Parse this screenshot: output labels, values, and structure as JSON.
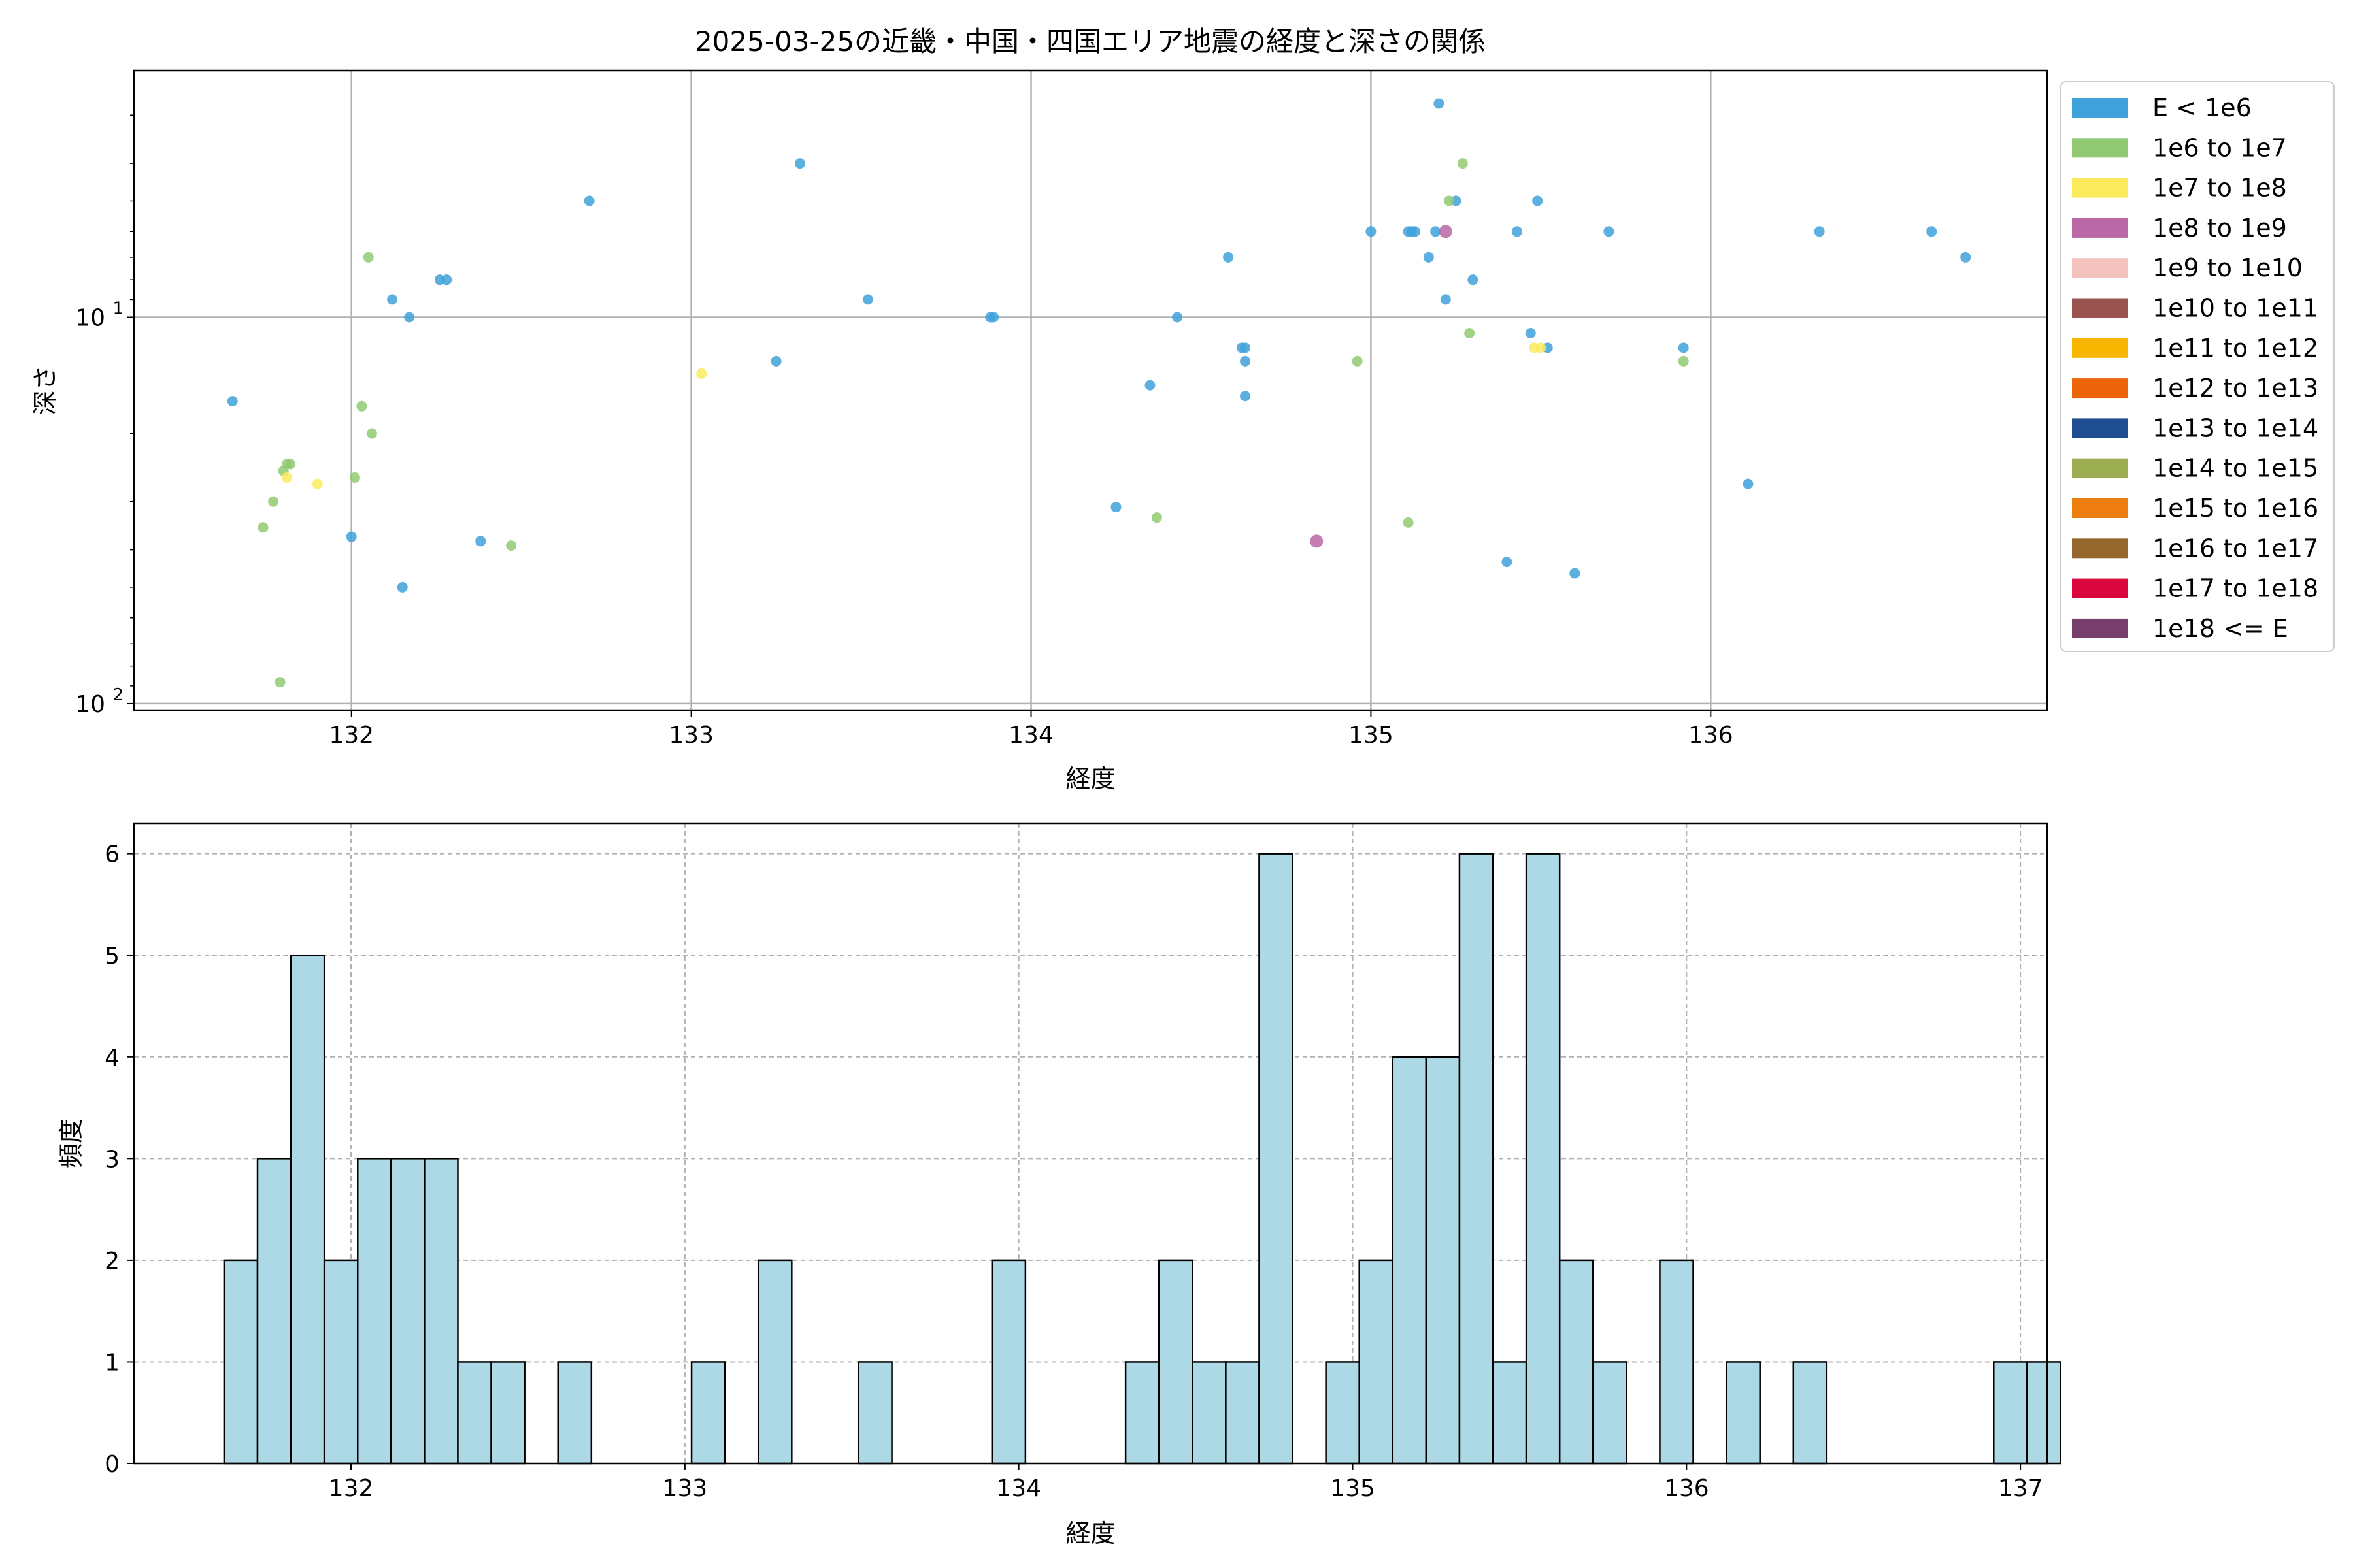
{
  "chart_data": [
    {
      "type": "scatter",
      "title": "2025-03-25の近畿・中国・四国エリア地震の経度と深さの関係",
      "xlabel": "経度",
      "ylabel": "深さ",
      "xlim": [
        131.36,
        136.99
      ],
      "xticks": [
        132,
        133,
        134,
        135,
        136
      ],
      "y_scale": "log",
      "y_inverted": true,
      "ylim": [
        104,
        2.3
      ],
      "yticks": [
        {
          "value": 10,
          "label": "10^1"
        },
        {
          "value": 100,
          "label": "10^2"
        }
      ],
      "grid": true,
      "legend": {
        "placement": "outside-right",
        "entries": [
          {
            "label": "E < 1e6",
            "color": "#3fa2db"
          },
          {
            "label": "1e6 to 1e7",
            "color": "#92c973"
          },
          {
            "label": "1e7 to 1e8",
            "color": "#fbeb5c"
          },
          {
            "label": "1e8 to 1e9",
            "color": "#b967a5"
          },
          {
            "label": "1e9 to 1e10",
            "color": "#f4c3bf"
          },
          {
            "label": "1e10 to 1e11",
            "color": "#9a534f"
          },
          {
            "label": "1e11 to 1e12",
            "color": "#f7b600"
          },
          {
            "label": "1e12 to 1e13",
            "color": "#ec6409"
          },
          {
            "label": "1e13 to 1e14",
            "color": "#1e4d91"
          },
          {
            "label": "1e14 to 1e15",
            "color": "#9cad52"
          },
          {
            "label": "1e15 to 1e16",
            "color": "#ee7d10"
          },
          {
            "label": "1e16 to 1e17",
            "color": "#95692e"
          },
          {
            "label": "1e17 to 1e18",
            "color": "#d8063c"
          },
          {
            "label": "1e18 <= E",
            "color": "#773e6b"
          }
        ]
      },
      "series": [
        {
          "class": 0,
          "points": [
            [
              131.65,
              16.5
            ],
            [
              132.0,
              37
            ],
            [
              132.12,
              9
            ],
            [
              132.15,
              50
            ],
            [
              132.17,
              10
            ],
            [
              132.26,
              8
            ],
            [
              132.28,
              8
            ],
            [
              132.38,
              38
            ],
            [
              132.7,
              5
            ],
            [
              133.25,
              13
            ],
            [
              133.32,
              4
            ],
            [
              133.52,
              9
            ],
            [
              133.88,
              10
            ],
            [
              133.89,
              10
            ],
            [
              134.25,
              31
            ],
            [
              134.35,
              15
            ],
            [
              134.43,
              10
            ],
            [
              134.58,
              7
            ],
            [
              134.62,
              12
            ],
            [
              134.63,
              12
            ],
            [
              134.63,
              13
            ],
            [
              134.63,
              16
            ],
            [
              135.0,
              6
            ],
            [
              135.11,
              6
            ],
            [
              135.12,
              6
            ],
            [
              135.13,
              6
            ],
            [
              135.17,
              7
            ],
            [
              135.19,
              6
            ],
            [
              135.2,
              2.8
            ],
            [
              135.22,
              9
            ],
            [
              135.25,
              5
            ],
            [
              135.3,
              8
            ],
            [
              135.4,
              43
            ],
            [
              135.43,
              6
            ],
            [
              135.47,
              11
            ],
            [
              135.49,
              5
            ],
            [
              135.52,
              12
            ],
            [
              135.6,
              46
            ],
            [
              135.7,
              6
            ],
            [
              135.92,
              12
            ],
            [
              136.11,
              27
            ],
            [
              136.32,
              6
            ],
            [
              136.65,
              6
            ],
            [
              136.75,
              7
            ]
          ]
        },
        {
          "class": 1,
          "points": [
            [
              131.74,
              35
            ],
            [
              131.77,
              30
            ],
            [
              131.79,
              88
            ],
            [
              131.8,
              25
            ],
            [
              131.81,
              24
            ],
            [
              131.82,
              24
            ],
            [
              132.01,
              26
            ],
            [
              132.03,
              17
            ],
            [
              132.05,
              7
            ],
            [
              132.06,
              20
            ],
            [
              132.47,
              39
            ],
            [
              134.37,
              33
            ],
            [
              134.96,
              13
            ],
            [
              135.11,
              34
            ],
            [
              135.23,
              5
            ],
            [
              135.27,
              4
            ],
            [
              135.29,
              11
            ],
            [
              135.92,
              13
            ]
          ]
        },
        {
          "class": 2,
          "points": [
            [
              131.81,
              26
            ],
            [
              131.9,
              27
            ],
            [
              133.03,
              14
            ],
            [
              135.48,
              12
            ],
            [
              135.5,
              12
            ]
          ]
        },
        {
          "class": 3,
          "points": [
            [
              134.84,
              38
            ],
            [
              135.22,
              6
            ]
          ]
        }
      ]
    },
    {
      "type": "bar",
      "subtype": "histogram",
      "xlabel": "経度",
      "ylabel": "頻度",
      "xlim": [
        131.35,
        137.08
      ],
      "ylim": [
        0,
        6.3
      ],
      "xticks": [
        132,
        133,
        134,
        135,
        136,
        137
      ],
      "yticks": [
        0,
        1,
        2,
        3,
        4,
        5,
        6
      ],
      "grid": true,
      "bar_color": "#add8e6",
      "bin_start": 131.62,
      "bin_width": 0.1,
      "counts": [
        2,
        3,
        5,
        2,
        3,
        3,
        3,
        1,
        1,
        0,
        1,
        0,
        0,
        0,
        1,
        0,
        2,
        0,
        0,
        1,
        0,
        0,
        0,
        2,
        0,
        0,
        0,
        1,
        2,
        1,
        1,
        6,
        0,
        1,
        2,
        4,
        4,
        6,
        1,
        6,
        2,
        1,
        0,
        2,
        0,
        1,
        0,
        1,
        0,
        0,
        0,
        0,
        0,
        1,
        1
      ]
    }
  ]
}
